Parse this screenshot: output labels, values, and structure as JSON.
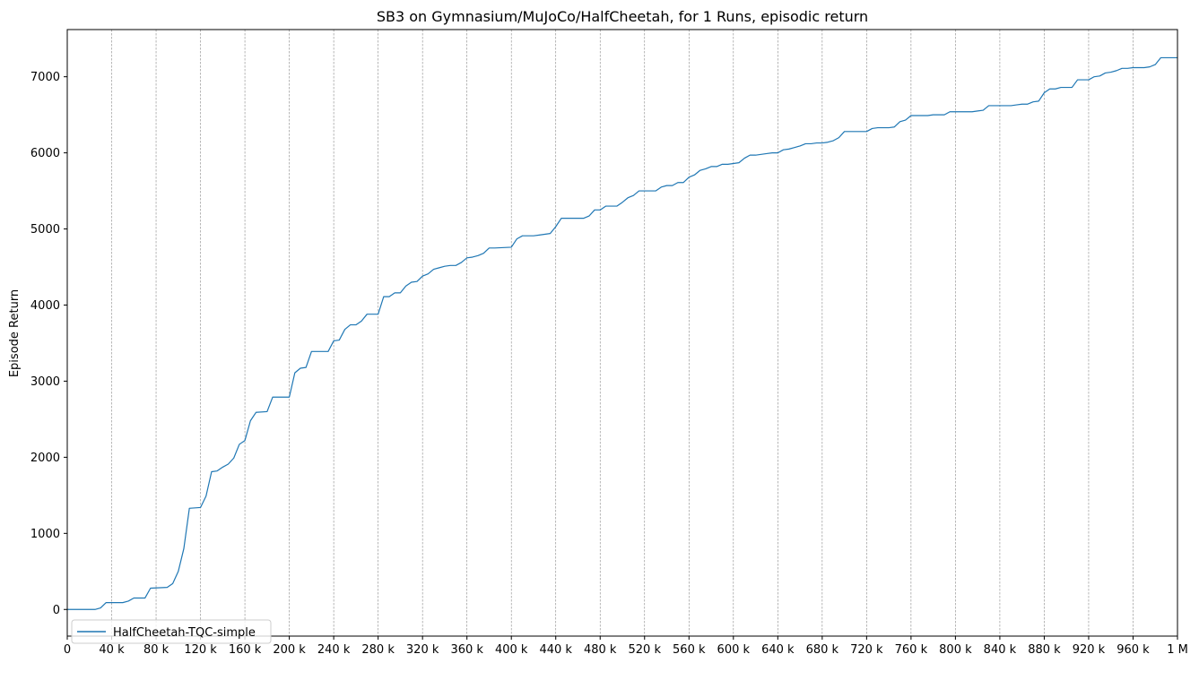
{
  "chart_data": {
    "type": "line",
    "title": "SB3 on Gymnasium/MuJoCo/HalfCheetah, for 1 Runs, episodic return",
    "xlabel": "",
    "ylabel": "Episode Return",
    "xlim": [
      0,
      1000000
    ],
    "ylim": [
      -350,
      7620
    ],
    "grid": "vertical dashed lines at x ticks",
    "legend_position": "lower-left",
    "x_ticks": [
      {
        "value": 0,
        "label": "0"
      },
      {
        "value": 40000,
        "label": "40 k"
      },
      {
        "value": 80000,
        "label": "80 k"
      },
      {
        "value": 120000,
        "label": "120 k"
      },
      {
        "value": 160000,
        "label": "160 k"
      },
      {
        "value": 200000,
        "label": "200 k"
      },
      {
        "value": 240000,
        "label": "240 k"
      },
      {
        "value": 280000,
        "label": "280 k"
      },
      {
        "value": 320000,
        "label": "320 k"
      },
      {
        "value": 360000,
        "label": "360 k"
      },
      {
        "value": 400000,
        "label": "400 k"
      },
      {
        "value": 440000,
        "label": "440 k"
      },
      {
        "value": 480000,
        "label": "480 k"
      },
      {
        "value": 520000,
        "label": "520 k"
      },
      {
        "value": 560000,
        "label": "560 k"
      },
      {
        "value": 600000,
        "label": "600 k"
      },
      {
        "value": 640000,
        "label": "640 k"
      },
      {
        "value": 680000,
        "label": "680 k"
      },
      {
        "value": 720000,
        "label": "720 k"
      },
      {
        "value": 760000,
        "label": "760 k"
      },
      {
        "value": 800000,
        "label": "800 k"
      },
      {
        "value": 840000,
        "label": "840 k"
      },
      {
        "value": 880000,
        "label": "880 k"
      },
      {
        "value": 920000,
        "label": "920 k"
      },
      {
        "value": 960000,
        "label": "960 k"
      },
      {
        "value": 1000000,
        "label": "1 M"
      }
    ],
    "y_ticks": [
      {
        "value": 0,
        "label": "0"
      },
      {
        "value": 1000,
        "label": "1000"
      },
      {
        "value": 2000,
        "label": "2000"
      },
      {
        "value": 3000,
        "label": "3000"
      },
      {
        "value": 4000,
        "label": "4000"
      },
      {
        "value": 5000,
        "label": "5000"
      },
      {
        "value": 6000,
        "label": "6000"
      },
      {
        "value": 7000,
        "label": "7000"
      }
    ],
    "series": [
      {
        "name": "HalfCheetah-TQC-simple",
        "color": "#1f77b4",
        "x": [
          0,
          25000,
          30000,
          35000,
          50000,
          55000,
          60000,
          70000,
          75000,
          90000,
          95000,
          100000,
          105000,
          110000,
          120000,
          125000,
          130000,
          135000,
          140000,
          145000,
          150000,
          155000,
          160000,
          165000,
          170000,
          180000,
          185000,
          200000,
          205000,
          210000,
          215000,
          220000,
          235000,
          240000,
          245000,
          250000,
          255000,
          260000,
          265000,
          270000,
          280000,
          285000,
          290000,
          295000,
          300000,
          305000,
          310000,
          315000,
          320000,
          325000,
          330000,
          335000,
          340000,
          345000,
          350000,
          355000,
          360000,
          365000,
          370000,
          375000,
          380000,
          385000,
          400000,
          405000,
          410000,
          420000,
          425000,
          430000,
          435000,
          440000,
          445000,
          450000,
          460000,
          465000,
          470000,
          475000,
          480000,
          485000,
          495000,
          500000,
          505000,
          510000,
          515000,
          520000,
          525000,
          530000,
          535000,
          540000,
          545000,
          550000,
          555000,
          560000,
          565000,
          570000,
          575000,
          580000,
          585000,
          590000,
          595000,
          600000,
          605000,
          610000,
          615000,
          620000,
          625000,
          630000,
          635000,
          640000,
          645000,
          650000,
          655000,
          660000,
          665000,
          670000,
          675000,
          680000,
          685000,
          690000,
          695000,
          700000,
          705000,
          710000,
          715000,
          720000,
          725000,
          730000,
          735000,
          740000,
          745000,
          750000,
          755000,
          760000,
          765000,
          770000,
          775000,
          780000,
          785000,
          790000,
          795000,
          800000,
          805000,
          810000,
          815000,
          820000,
          825000,
          830000,
          835000,
          840000,
          845000,
          850000,
          855000,
          860000,
          865000,
          870000,
          875000,
          880000,
          885000,
          890000,
          895000,
          900000,
          905000,
          910000,
          915000,
          920000,
          925000,
          930000,
          935000,
          940000,
          945000,
          950000,
          955000,
          960000,
          965000,
          970000,
          975000,
          980000,
          985000,
          990000,
          995000,
          1000000
        ],
        "y": [
          0,
          0,
          20,
          90,
          90,
          110,
          150,
          150,
          280,
          290,
          340,
          500,
          800,
          1330,
          1340,
          1490,
          1810,
          1820,
          1870,
          1910,
          1990,
          2170,
          2220,
          2480,
          2590,
          2600,
          2790,
          2790,
          3110,
          3170,
          3180,
          3390,
          3390,
          3530,
          3540,
          3680,
          3740,
          3740,
          3790,
          3880,
          3880,
          4110,
          4110,
          4160,
          4160,
          4250,
          4300,
          4310,
          4380,
          4410,
          4470,
          4490,
          4510,
          4520,
          4520,
          4560,
          4620,
          4630,
          4650,
          4680,
          4750,
          4750,
          4760,
          4870,
          4910,
          4910,
          4920,
          4930,
          4940,
          5030,
          5140,
          5140,
          5140,
          5140,
          5170,
          5250,
          5250,
          5300,
          5300,
          5350,
          5410,
          5440,
          5500,
          5500,
          5500,
          5500,
          5550,
          5570,
          5570,
          5610,
          5610,
          5680,
          5710,
          5770,
          5790,
          5820,
          5820,
          5850,
          5850,
          5860,
          5870,
          5930,
          5970,
          5970,
          5980,
          5990,
          6000,
          6000,
          6040,
          6050,
          6070,
          6090,
          6120,
          6120,
          6130,
          6130,
          6140,
          6160,
          6200,
          6280,
          6280,
          6280,
          6280,
          6280,
          6320,
          6330,
          6330,
          6330,
          6340,
          6410,
          6430,
          6490,
          6490,
          6490,
          6490,
          6500,
          6500,
          6500,
          6540,
          6540,
          6540,
          6540,
          6540,
          6550,
          6560,
          6620,
          6620,
          6620,
          6620,
          6620,
          6630,
          6640,
          6640,
          6670,
          6680,
          6790,
          6840,
          6840,
          6860,
          6860,
          6860,
          6960,
          6960,
          6960,
          7000,
          7010,
          7050,
          7060,
          7080,
          7110,
          7110,
          7120,
          7120,
          7120,
          7130,
          7160,
          7250,
          7250,
          7250,
          7250
        ]
      }
    ]
  }
}
